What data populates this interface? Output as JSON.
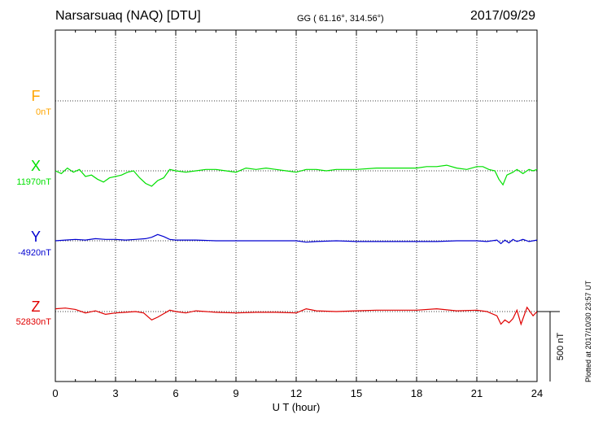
{
  "header": {
    "station": "Narsarsuaq (NAQ)  [DTU]",
    "coords": "GG ( 61.16°, 314.56°)",
    "date": "2017/09/29"
  },
  "plotted_note": "Plotted at 2017/10/30 23:57 UT",
  "colors": {
    "F": "#ffa500",
    "X": "#00e000",
    "Y": "#0000d0",
    "Z": "#e00000"
  },
  "chart_data": {
    "type": "line",
    "xlabel": "U T (hour)",
    "xlim": [
      0,
      24
    ],
    "xticks": [
      "0",
      "3",
      "6",
      "9",
      "12",
      "15",
      "18",
      "21",
      "24"
    ],
    "scale_bar": "500 nT",
    "series": [
      {
        "name": "F",
        "baseline": "0nT",
        "x": [],
        "y": []
      },
      {
        "name": "X",
        "baseline": "11970nT",
        "x": [
          0,
          0.3,
          0.6,
          0.9,
          1.2,
          1.5,
          1.8,
          2.1,
          2.4,
          2.7,
          3.0,
          3.3,
          3.6,
          3.9,
          4.2,
          4.5,
          4.8,
          5.1,
          5.4,
          5.7,
          6.0,
          6.5,
          7.0,
          7.5,
          8.0,
          8.5,
          9.0,
          9.5,
          10,
          10.5,
          11,
          11.5,
          12,
          12.5,
          13,
          13.5,
          14,
          15,
          16,
          17,
          18,
          18.5,
          19,
          19.5,
          20,
          20.5,
          21,
          21.3,
          21.6,
          21.9,
          22.1,
          22.3,
          22.5,
          22.8,
          23.0,
          23.3,
          23.6,
          23.8,
          24
        ],
        "y": [
          0,
          -20,
          20,
          -10,
          10,
          -40,
          -30,
          -60,
          -80,
          -50,
          -40,
          -30,
          -10,
          0,
          -50,
          -90,
          -110,
          -70,
          -50,
          10,
          0,
          -10,
          0,
          10,
          10,
          0,
          -10,
          20,
          10,
          20,
          10,
          0,
          -10,
          10,
          10,
          0,
          10,
          10,
          20,
          20,
          20,
          30,
          30,
          40,
          20,
          10,
          30,
          30,
          10,
          0,
          -60,
          -100,
          -30,
          -10,
          10,
          -20,
          10,
          0,
          10
        ]
      },
      {
        "name": "Y",
        "baseline": "-4920nT",
        "x": [
          0,
          0.5,
          1.0,
          1.5,
          2.0,
          2.5,
          3.0,
          3.5,
          4.0,
          4.5,
          4.8,
          5.1,
          5.4,
          5.7,
          6.0,
          6.5,
          7,
          8,
          9,
          10,
          11,
          12,
          12.5,
          13,
          14,
          15,
          16,
          17,
          18,
          19,
          20,
          21,
          21.5,
          22,
          22.2,
          22.4,
          22.6,
          22.8,
          23,
          23.3,
          23.6,
          24
        ],
        "y": [
          0,
          5,
          10,
          5,
          15,
          10,
          10,
          5,
          10,
          15,
          25,
          45,
          30,
          10,
          5,
          5,
          5,
          0,
          0,
          0,
          0,
          0,
          -10,
          -5,
          0,
          -5,
          -5,
          -5,
          -5,
          -5,
          0,
          0,
          -5,
          5,
          -20,
          5,
          -15,
          10,
          -5,
          10,
          -5,
          5
        ]
      },
      {
        "name": "Z",
        "baseline": "52830nT",
        "x": [
          0,
          0.5,
          1.0,
          1.5,
          2.0,
          2.5,
          3.0,
          3.5,
          4.0,
          4.4,
          4.8,
          5.1,
          5.4,
          5.7,
          6.0,
          6.5,
          7,
          8,
          9,
          10,
          11,
          12,
          12.5,
          13,
          14,
          15,
          16,
          17,
          18,
          19,
          20,
          21,
          21.5,
          22,
          22.2,
          22.4,
          22.6,
          22.8,
          23,
          23.2,
          23.5,
          23.8,
          24
        ],
        "y": [
          20,
          25,
          15,
          -10,
          5,
          -20,
          -10,
          -5,
          0,
          -10,
          -60,
          -40,
          -15,
          10,
          0,
          -10,
          5,
          -5,
          -10,
          -5,
          -5,
          -10,
          20,
          5,
          0,
          5,
          10,
          10,
          10,
          20,
          5,
          10,
          0,
          -30,
          -90,
          -60,
          -80,
          -50,
          10,
          -90,
          30,
          -30,
          0
        ]
      }
    ]
  }
}
